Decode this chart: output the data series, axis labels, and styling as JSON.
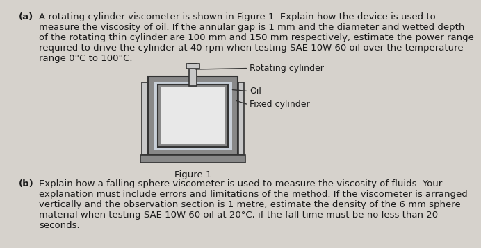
{
  "background_color": "#d6d2cc",
  "text_color": "#1a1a1a",
  "part_a_label": "(a)",
  "part_a_text": "A rotating cylinder viscometer is shown in Figure 1. Explain how the device is used to\nmeasure the viscosity of oil. If the annular gap is 1 mm and the diameter and wetted depth\nof the rotating thin cylinder are 100 mm and 150 mm respectively, estimate the power range\nrequired to drive the cylinder at 40 rpm when testing SAE 10W-60 oil over the temperature\nrange 0°C to 100°C.",
  "part_b_label": "(b)",
  "part_b_text": "Explain how a falling sphere viscometer is used to measure the viscosity of fluids. Your\nexplanation must include errors and limitations of the method. If the viscometer is arranged\nvertically and the observation section is 1 metre, estimate the density of the 6 mm sphere\nmaterial when testing SAE 10W-60 oil at 20°C, if the fall time must be no less than 20\nseconds.",
  "figure_caption": "Figure 1",
  "label_rotating": "Rotating cylinder",
  "label_oil": "Oil",
  "label_fixed": "Fixed cylinder",
  "outer_wall_color": "#888888",
  "inner_fill_color": "#c8cfd8",
  "rotating_fill_color": "#e8e8e8",
  "shaft_fill_color": "#c8c8c8",
  "line_color": "#333333"
}
